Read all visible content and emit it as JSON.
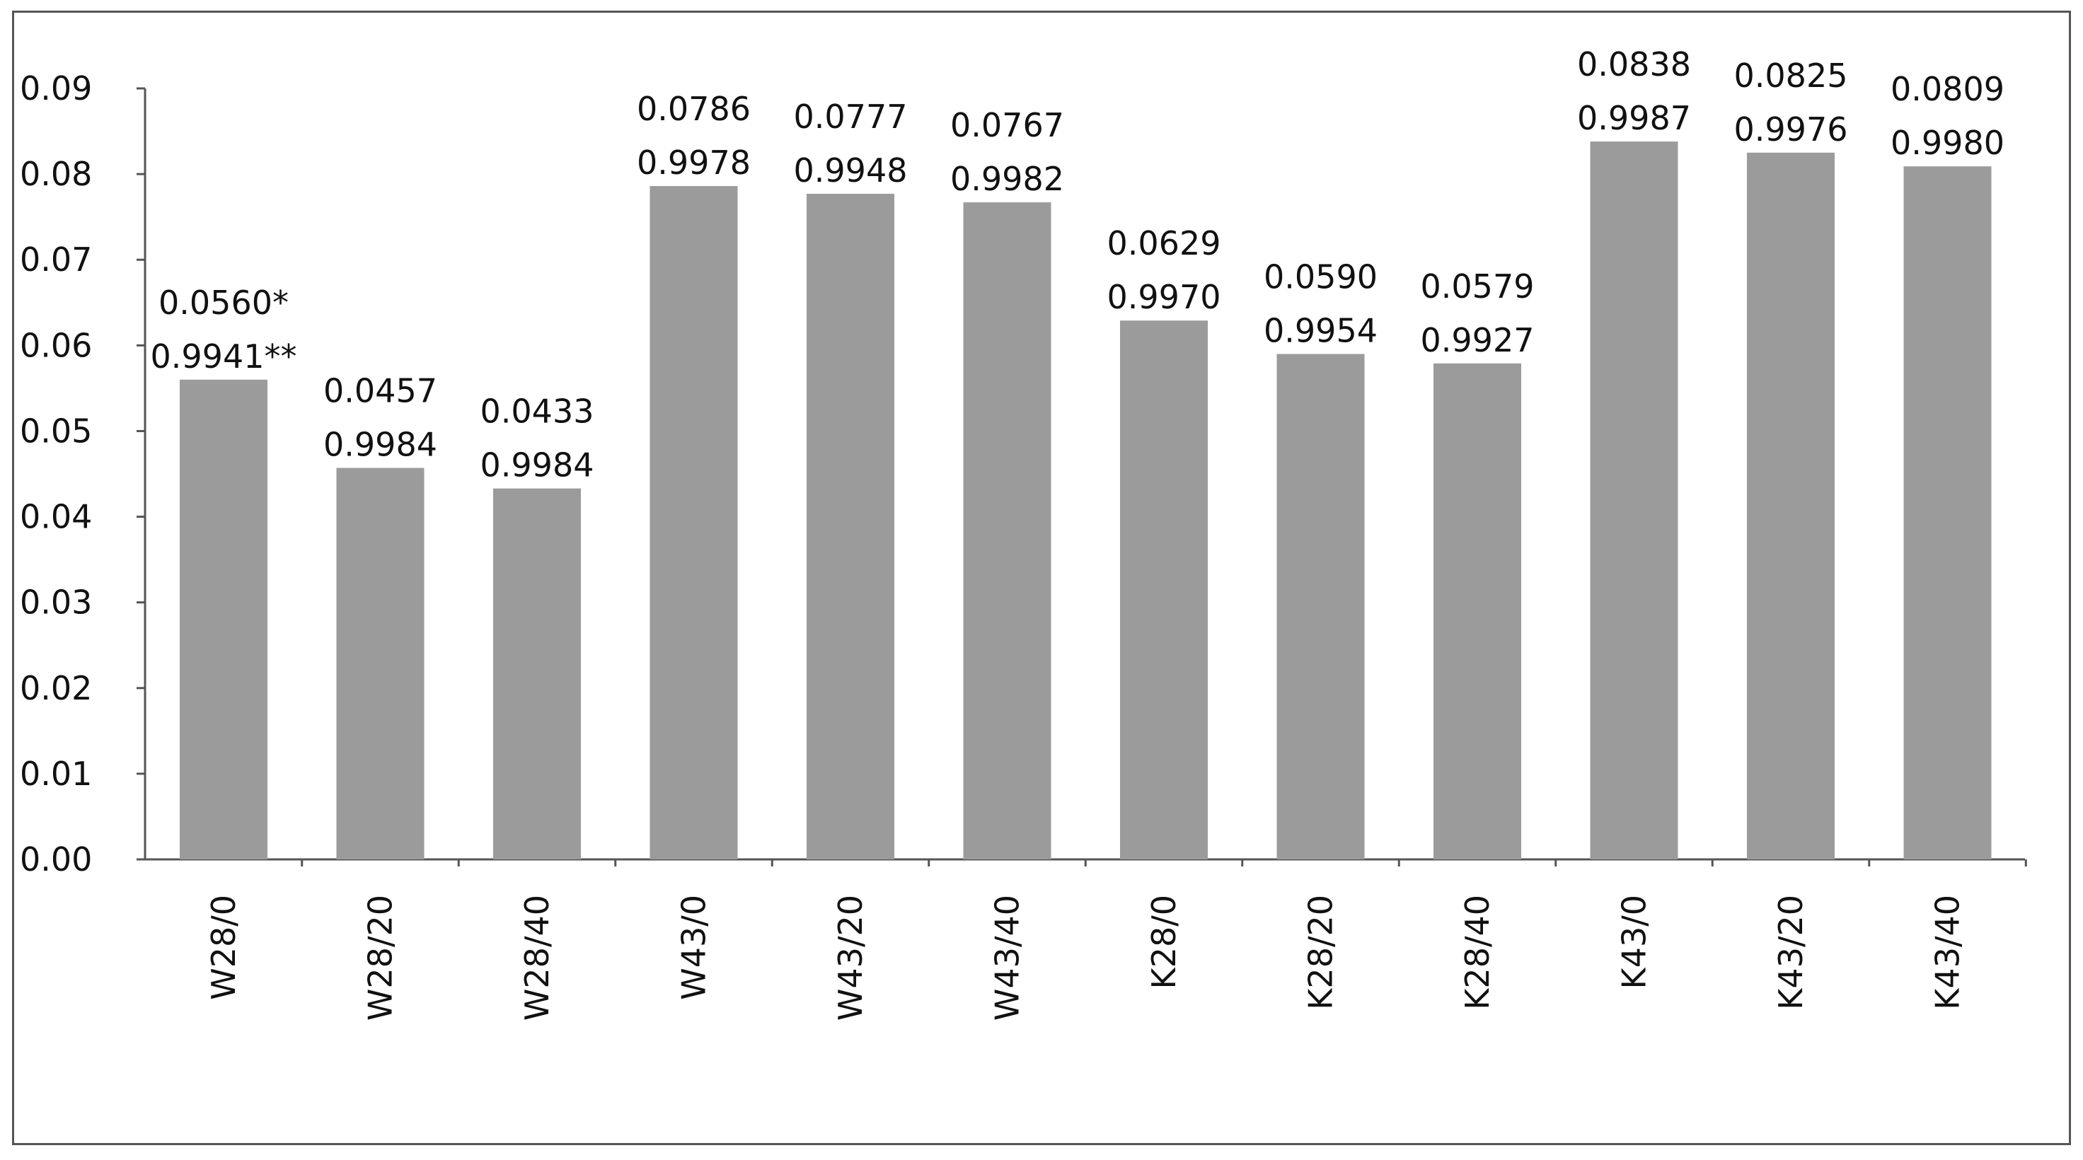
{
  "chart_data": {
    "type": "bar",
    "title": "",
    "xlabel": "",
    "ylabel": "",
    "ylim": [
      0,
      0.09
    ],
    "yticks": [
      "0.00",
      "0.01",
      "0.02",
      "0.03",
      "0.04",
      "0.05",
      "0.06",
      "0.07",
      "0.08",
      "0.09"
    ],
    "grid": false,
    "legend": "none",
    "bar_color": "#9b9b9b",
    "categories": [
      "W28/0",
      "W28/20",
      "W28/40",
      "W43/0",
      "W43/20",
      "W43/40",
      "K28/0",
      "K28/20",
      "K28/40",
      "K43/0",
      "K43/20",
      "K43/40"
    ],
    "values": [
      0.056,
      0.0457,
      0.0433,
      0.0786,
      0.0777,
      0.0767,
      0.0629,
      0.059,
      0.0579,
      0.0838,
      0.0825,
      0.0809
    ],
    "labels_top": [
      "0.0560*",
      "0.0457",
      "0.0433",
      "0.0786",
      "0.0777",
      "0.0767",
      "0.0629",
      "0.0590",
      "0.0579",
      "0.0838",
      "0.0825",
      "0.0809"
    ],
    "labels_bottom": [
      "0.9941**",
      "0.9984",
      "0.9984",
      "0.9978",
      "0.9948",
      "0.9982",
      "0.9970",
      "0.9954",
      "0.9927",
      "0.9987",
      "0.9976",
      "0.9980"
    ]
  }
}
